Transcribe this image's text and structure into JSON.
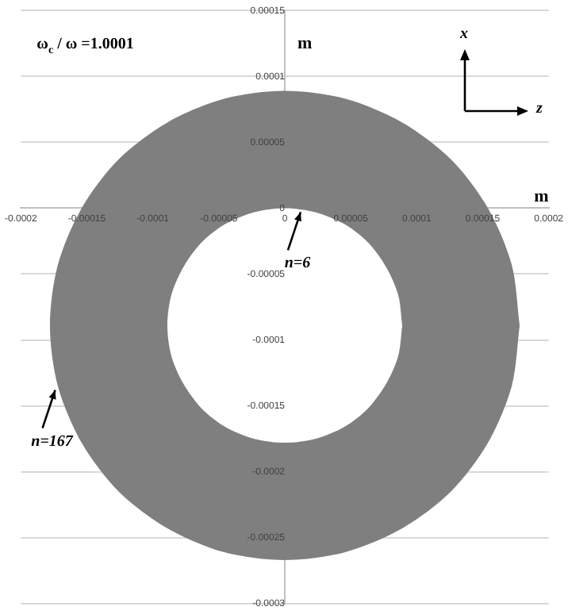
{
  "chart_data": {
    "type": "area",
    "title": "ω$_{c}$ / ω =1.0001",
    "xlabel": "m",
    "ylabel": "m",
    "series": [
      {
        "color": "#7f7f7f",
        "x": [
          0.000178,
          0.000172,
          0.000154,
          0.000126,
          8.9e-05,
          4.6e-05,
          0,
          -4.6e-05,
          -8.9e-05,
          -0.000126,
          -0.000154,
          -0.000172,
          -0.000178,
          -0.000172,
          -0.000154,
          -0.000126,
          -8.9e-05,
          -4.6e-05,
          0,
          4.6e-05,
          8.9e-05,
          0.000126,
          0.000154,
          0.000172,
          0.000178
        ],
        "values": [
          -8.9e-05,
          -4.3e-05,
          0,
          3.7e-05,
          6.5e-05,
          8.3e-05,
          8.9e-05,
          8.3e-05,
          6.5e-05,
          3.7e-05,
          0,
          -4.3e-05,
          -8.9e-05,
          -0.000135,
          -0.000178,
          -0.000215,
          -0.000243,
          -0.000261,
          -0.000267,
          -0.000261,
          -0.000243,
          -0.000215,
          -0.000178,
          -0.000135,
          -8.9e-05
        ]
      },
      {
        "color": "#ffffff",
        "x": [
          8.9e-05,
          8.6e-05,
          7.7e-05,
          6.3e-05,
          4.5e-05,
          2.3e-05,
          0,
          -2.3e-05,
          -4.5e-05,
          -6.3e-05,
          -7.7e-05,
          -8.6e-05,
          -8.9e-05,
          -8.6e-05,
          -7.7e-05,
          -6.3e-05,
          -4.5e-05,
          -2.3e-05,
          0,
          2.3e-05,
          4.5e-05,
          6.3e-05,
          7.7e-05,
          8.6e-05,
          8.9e-05
        ],
        "values": [
          -8.9e-05,
          -6.6e-05,
          -4.5e-05,
          -2.6e-05,
          -1.2e-05,
          -3e-06,
          0,
          -3e-06,
          -1.2e-05,
          -2.6e-05,
          -4.5e-05,
          -6.6e-05,
          -8.9e-05,
          -0.000112,
          -0.000133,
          -0.000152,
          -0.000166,
          -0.000175,
          -0.000178,
          -0.000175,
          -0.000166,
          -0.000152,
          -0.000133,
          -0.000112,
          -8.9e-05
        ]
      }
    ],
    "xlim": [
      -0.0002,
      0.0002
    ],
    "xticks": [
      -0.0002,
      -0.00015,
      -0.0001,
      {
        "value": -5e-05,
        "label": "-0.00005"
      },
      0,
      {
        "value": 5e-05,
        "label": "0.00005"
      },
      0.0001,
      0.00015,
      0.0002
    ],
    "ylim": [
      -0.0003,
      0.00015
    ],
    "yticks": [
      -0.0003,
      -0.00025,
      -0.0002,
      -0.00015,
      -0.0001,
      {
        "value": -5e-05,
        "label": "-0.00005"
      },
      0,
      {
        "value": 5e-05,
        "label": "0.00005"
      },
      0.0001,
      0.00015
    ],
    "grid": "y",
    "legend": false,
    "annotations": [
      {
        "text": "n=6",
        "x": 1.2e-05,
        "y": -3e-06
      },
      {
        "text": "n=167",
        "x": -0.000174,
        "y": -0.000138
      },
      "x",
      "z"
    ]
  }
}
